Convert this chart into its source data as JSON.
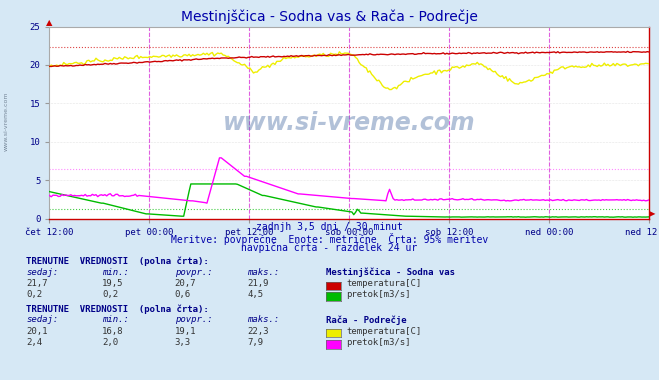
{
  "title": "Mestinjščica - Sodna vas & Rača - Podrečje",
  "subtitle1": "zadnjh 3,5 dni / 30 minut",
  "subtitle2": "Meritve: povprečne  Enote: metrične  Črta: 95% meritev",
  "subtitle3": "navpična črta - razdelek 24 ur",
  "bg_color": "#d6e8f5",
  "plot_bg_color": "#ffffff",
  "xlabel_ticks": [
    "čet 12:00",
    "pet 00:00",
    "pet 12:00",
    "sob 00:00",
    "sob 12:00",
    "ned 00:00",
    "ned 12:00"
  ],
  "ylim": [
    0,
    25
  ],
  "yticks": [
    0,
    5,
    10,
    15,
    20,
    25
  ],
  "grid_color": "#cccccc",
  "vline_color": "#dd44dd",
  "n_points": 336,
  "temp_mestinje_color": "#cc0000",
  "pretok_mestinje_color": "#00bb00",
  "temp_raca_color": "#eeee00",
  "pretok_raca_color": "#ff00ff",
  "hline_temp_95": 22.3,
  "hline_pretok_raca_95": 6.5,
  "hline_pretok_mest_95": 1.2,
  "section1_label": "TRENUTNE  VREDNOSTI  (polna črta):",
  "station1_name": "Mestinjščica - Sodna vas",
  "s1r1_label": "temperatura[C]",
  "s1r1_color": "#cc0000",
  "s1r1_sedaj": "21,7",
  "s1r1_min": "19,5",
  "s1r1_povpr": "20,7",
  "s1r1_maks": "21,9",
  "s1r2_label": "pretok[m3/s]",
  "s1r2_color": "#00bb00",
  "s1r2_sedaj": "0,2",
  "s1r2_min": "0,2",
  "s1r2_povpr": "0,6",
  "s1r2_maks": "4,5",
  "section2_label": "TRENUTNE  VREDNOSTI  (polna črta):",
  "station2_name": "Rača - Podrečje",
  "s2r1_label": "temperatura[C]",
  "s2r1_color": "#eeee00",
  "s2r1_sedaj": "20,1",
  "s2r1_min": "16,8",
  "s2r1_povpr": "19,1",
  "s2r1_maks": "22,3",
  "s2r2_label": "pretok[m3/s]",
  "s2r2_color": "#ff00ff",
  "s2r2_sedaj": "2,4",
  "s2r2_min": "2,0",
  "s2r2_povpr": "3,3",
  "s2r2_maks": "7,9",
  "watermark": "www.si-vreme.com",
  "col_headers": [
    "sedaj:",
    "min.:",
    "povpr.:",
    "maks.:"
  ],
  "text_blue": "#0000cc",
  "text_dark": "#333333",
  "text_mono": "#000088"
}
